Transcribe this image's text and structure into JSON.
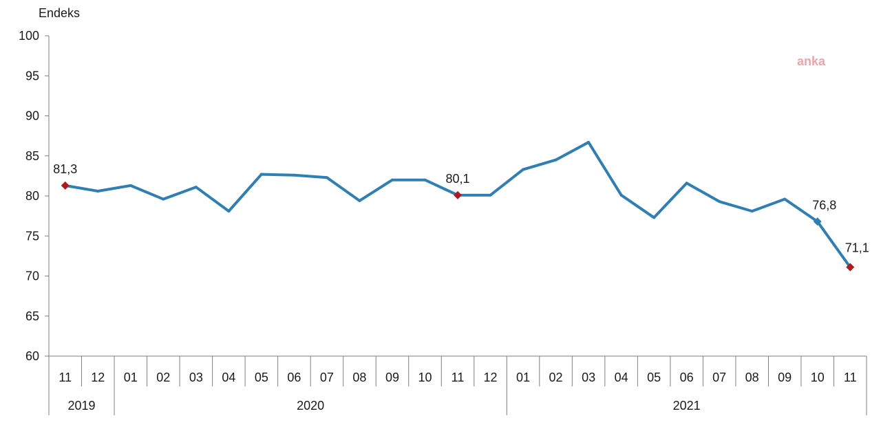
{
  "chart_data": {
    "type": "line",
    "ylabel": "Endeks",
    "ylim": [
      60,
      100
    ],
    "yticks": [
      "100",
      "95",
      "90",
      "85",
      "80",
      "75",
      "70",
      "65",
      "60"
    ],
    "grid": false,
    "categories": [
      "11",
      "12",
      "01",
      "02",
      "03",
      "04",
      "05",
      "06",
      "07",
      "08",
      "09",
      "10",
      "11",
      "12",
      "01",
      "02",
      "03",
      "04",
      "05",
      "06",
      "07",
      "08",
      "09",
      "10",
      "11"
    ],
    "years": [
      {
        "label": "2019",
        "count": 2
      },
      {
        "label": "2020",
        "count": 12
      },
      {
        "label": "2021",
        "count": 11
      }
    ],
    "series": [
      {
        "values": [
          81.3,
          80.6,
          81.3,
          79.6,
          81.1,
          78.1,
          82.7,
          82.6,
          82.3,
          79.4,
          82.0,
          82.0,
          80.1,
          80.1,
          83.3,
          84.5,
          86.7,
          80.1,
          77.3,
          81.6,
          79.3,
          78.1,
          79.6,
          76.8,
          71.1
        ],
        "color": "#2e7fb5"
      }
    ],
    "annotations": [
      {
        "index": 0,
        "text": "81,3",
        "marker_color": "#b2191f",
        "marker": "diamond"
      },
      {
        "index": 12,
        "text": "80,1",
        "marker_color": "#b2191f",
        "marker": "diamond"
      },
      {
        "index": 23,
        "text": "76,8",
        "marker_color": "#2e7fb5",
        "marker": "diamond"
      },
      {
        "index": 24,
        "text": "71,1",
        "marker_color": "#b2191f",
        "marker": "diamond"
      }
    ]
  },
  "watermark": "anka"
}
